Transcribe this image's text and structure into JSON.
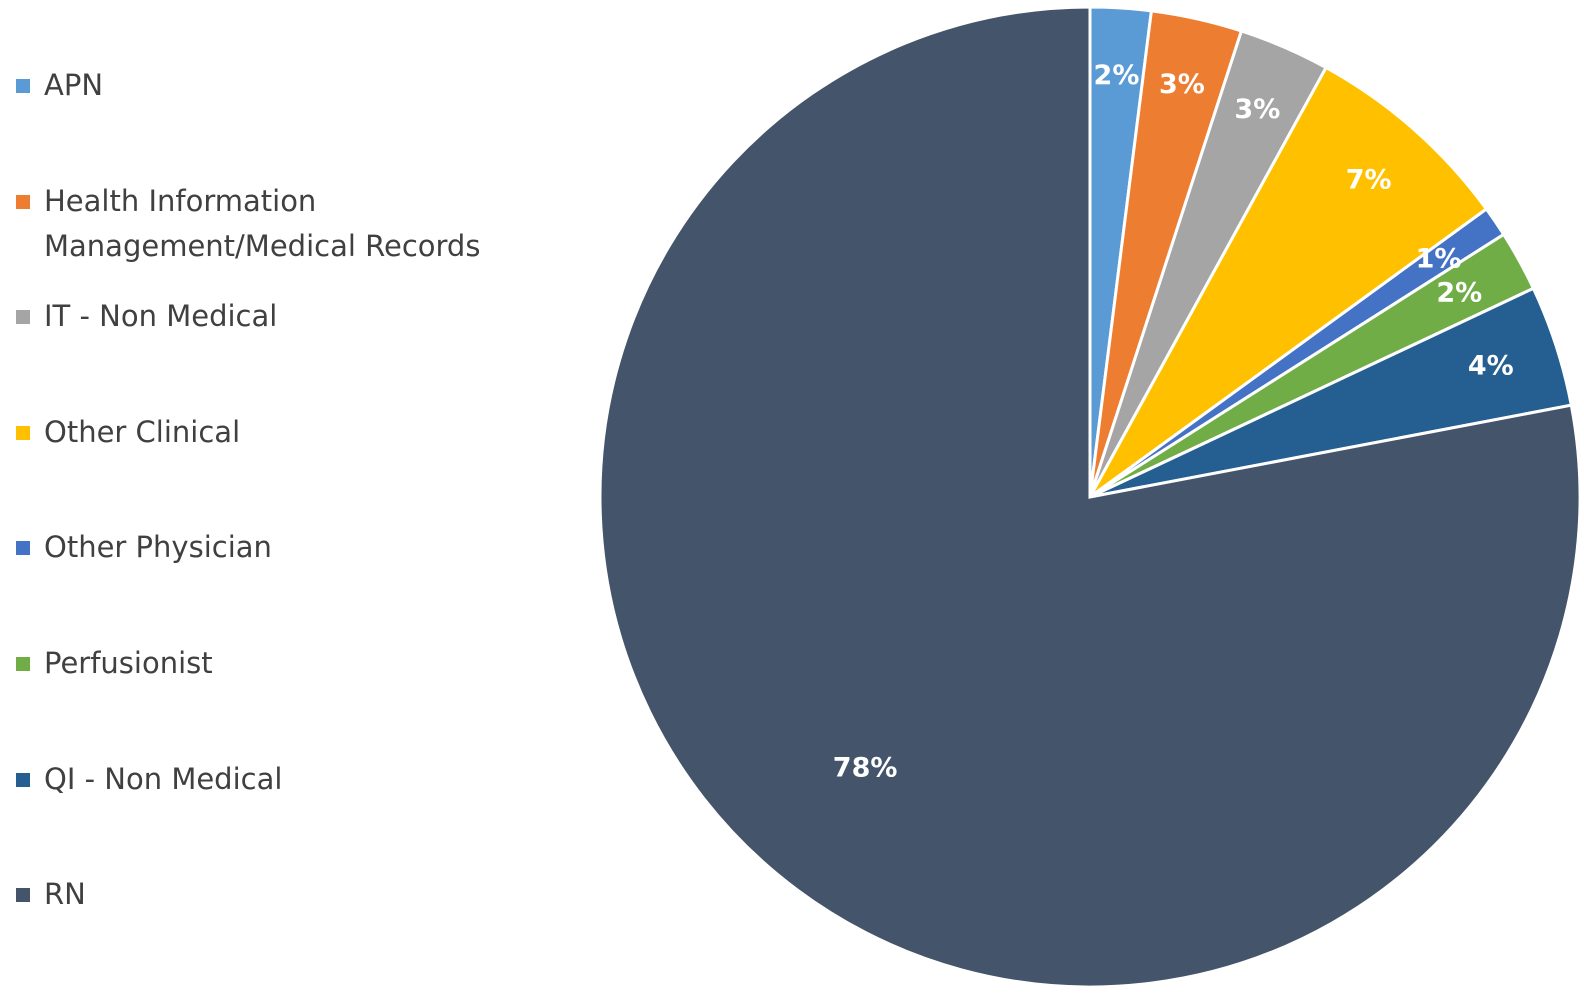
{
  "chart_data": {
    "type": "pie",
    "categories": [
      "APN",
      "Health Information Management/Medical Records",
      "IT - Non Medical",
      "Other Clinical",
      "Other Physician",
      "Perfusionist",
      "QI - Non Medical",
      "RN"
    ],
    "values": [
      2,
      3,
      3,
      7,
      1,
      2,
      4,
      78
    ],
    "value_labels": [
      "2%",
      "3%",
      "3%",
      "7%",
      "1%",
      "2%",
      "4%",
      "78%"
    ],
    "colors": [
      "#5b9bd5",
      "#ed7d31",
      "#a5a5a5",
      "#ffc000",
      "#4472c4",
      "#70ad47",
      "#255e91",
      "#44546a"
    ],
    "legend": "left"
  }
}
